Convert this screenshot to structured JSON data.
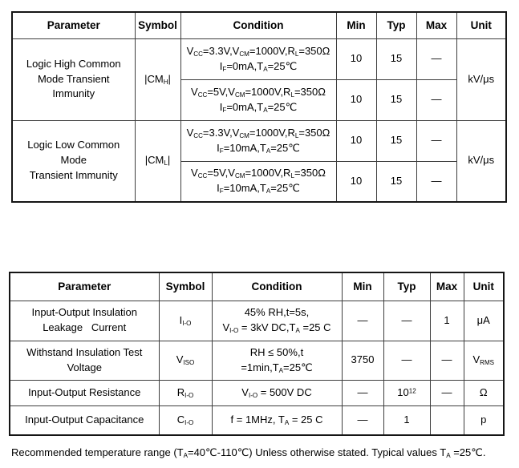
{
  "table1": {
    "headers": [
      "Parameter",
      "Symbol",
      "Condition",
      "Min",
      "Typ",
      "Max",
      "Unit"
    ],
    "groups": [
      {
        "parameter_lines": [
          "Logic High Common",
          "Mode Transient Immunity"
        ],
        "symbol": "|CM~H~|",
        "unit": "kV/μs",
        "rows": [
          {
            "condition_lines": [
              "V~CC~=3.3V,V~CM~=1000V,R~L~=350Ω",
              "I~F~=0mA,T~A~=25℃"
            ],
            "min": "10",
            "typ": "15",
            "max": "—"
          },
          {
            "condition_lines": [
              "V~CC~=5V,V~CM~=1000V,R~L~=350Ω",
              "I~F~=0mA,T~A~=25℃"
            ],
            "min": "10",
            "typ": "15",
            "max": "—"
          }
        ]
      },
      {
        "parameter_lines": [
          "Logic Low Common Mode",
          "Transient Immunity"
        ],
        "symbol": "|CM~L~|",
        "unit": "kV/μs",
        "rows": [
          {
            "condition_lines": [
              "V~CC~=3.3V,V~CM~=1000V,R~L~=350Ω",
              "I~F~=10mA,T~A~=25℃"
            ],
            "min": "10",
            "typ": "15",
            "max": "—"
          },
          {
            "condition_lines": [
              "V~CC~=5V,V~CM~=1000V,R~L~=350Ω",
              "I~F~=10mA,T~A~=25℃"
            ],
            "min": "10",
            "typ": "15",
            "max": "—"
          }
        ]
      }
    ]
  },
  "table2": {
    "headers": [
      "Parameter",
      "Symbol",
      "Condition",
      "Min",
      "Typ",
      "Max",
      "Unit"
    ],
    "rows": [
      {
        "parameter_lines": [
          "Input-Output Insulation",
          "Leakage   Current"
        ],
        "symbol": "I~I-O~",
        "condition_lines": [
          "45% RH,t=5s,",
          "V~I-O~ = 3kV DC,T~A~ =25 C"
        ],
        "min": "—",
        "typ": "—",
        "max": "1",
        "unit": "μA"
      },
      {
        "parameter_lines": [
          "Withstand Insulation Test",
          "Voltage"
        ],
        "symbol": "V~ISO~",
        "condition_lines": [
          "RH ≤ 50%,t =1min,T~A~=25℃"
        ],
        "min": "3750",
        "typ": "—",
        "max": "—",
        "unit": "V~RMS~"
      },
      {
        "parameter_lines": [
          "Input-Output Resistance"
        ],
        "symbol": "R~I-O~",
        "condition_lines": [
          "V~I-O~ = 500V DC"
        ],
        "min": "—",
        "typ": "10^12^",
        "max": "—",
        "unit": "Ω"
      },
      {
        "parameter_lines": [
          "Input-Output Capacitance"
        ],
        "symbol": "C~I-O~",
        "condition_lines": [
          "f = 1MHz, T~A~ = 25 C"
        ],
        "min": "—",
        "typ": "1",
        "max": "",
        "unit": "p"
      }
    ]
  },
  "footnote": {
    "text": "Recommended temperature range (T~A~=40℃-110℃) Unless otherwise stated. Typical values T~A~ =25℃."
  }
}
